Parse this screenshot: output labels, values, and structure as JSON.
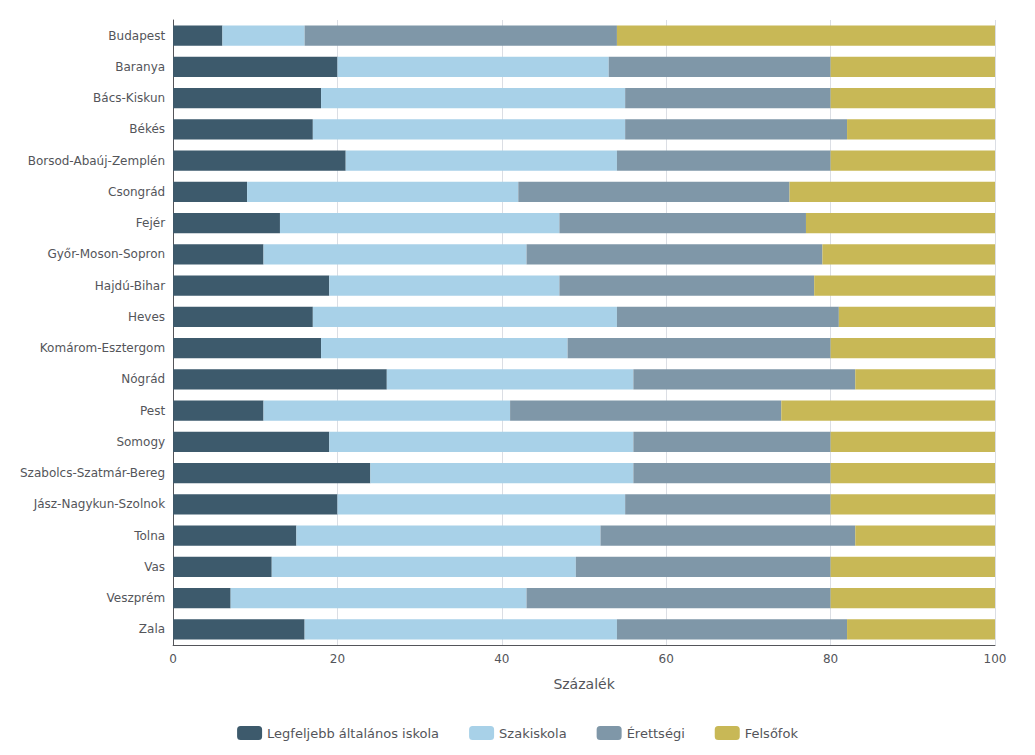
{
  "chart_data": {
    "type": "bar",
    "orientation": "horizontal",
    "stacked": true,
    "xlabel": "Százalék",
    "categories": [
      "Budapest",
      "Baranya",
      "Bács-Kiskun",
      "Békés",
      "Borsod-Abaúj-Zemplén",
      "Csongrád",
      "Fejér",
      "Győr-Moson-Sopron",
      "Hajdú-Bihar",
      "Heves",
      "Komárom-Esztergom",
      "Nógrád",
      "Pest",
      "Somogy",
      "Szabolcs-Szatmár-Bereg",
      "Jász-Nagykun-Szolnok",
      "Tolna",
      "Vas",
      "Veszprém",
      "Zala"
    ],
    "series": [
      {
        "name": "Legfeljebb általános iskola",
        "color": "#3d5a6c",
        "values": [
          6,
          20,
          18,
          17,
          21,
          9,
          13,
          11,
          19,
          17,
          18,
          26,
          11,
          19,
          24,
          20,
          15,
          12,
          7,
          16
        ]
      },
      {
        "name": "Szakiskola",
        "color": "#a8d1e8",
        "values": [
          10,
          33,
          37,
          38,
          33,
          33,
          34,
          32,
          28,
          37,
          30,
          30,
          30,
          37,
          32,
          35,
          37,
          37,
          36,
          38
        ]
      },
      {
        "name": "Érettségi",
        "color": "#7f97a8",
        "values": [
          38,
          27,
          25,
          27,
          26,
          33,
          30,
          36,
          31,
          27,
          32,
          27,
          33,
          24,
          24,
          25,
          31,
          31,
          37,
          28
        ]
      },
      {
        "name": "Felsőfok",
        "color": "#c8b856",
        "values": [
          46,
          20,
          20,
          18,
          20,
          25,
          23,
          21,
          22,
          19,
          20,
          17,
          26,
          20,
          20,
          20,
          17,
          20,
          20,
          18
        ]
      }
    ],
    "xlim": [
      0,
      100
    ],
    "xticks": [
      0,
      20,
      40,
      60,
      80,
      100
    ],
    "grid": true,
    "legend": "bottom"
  }
}
